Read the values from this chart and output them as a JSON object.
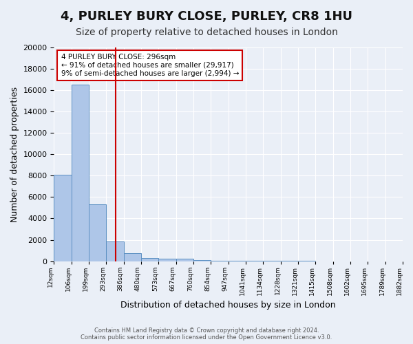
{
  "title1": "4, PURLEY BURY CLOSE, PURLEY, CR8 1HU",
  "title2": "Size of property relative to detached houses in London",
  "xlabel": "Distribution of detached houses by size in London",
  "ylabel": "Number of detached properties",
  "bin_labels": [
    "12sqm",
    "106sqm",
    "199sqm",
    "293sqm",
    "386sqm",
    "480sqm",
    "573sqm",
    "667sqm",
    "760sqm",
    "854sqm",
    "947sqm",
    "1041sqm",
    "1134sqm",
    "1228sqm",
    "1321sqm",
    "1415sqm",
    "1508sqm",
    "1602sqm",
    "1695sqm",
    "1789sqm",
    "1882sqm"
  ],
  "bar_heights": [
    8100,
    16500,
    5300,
    1850,
    750,
    320,
    230,
    200,
    130,
    50,
    50,
    40,
    30,
    20,
    10,
    5,
    5,
    3,
    2,
    1
  ],
  "bar_color": "#aec6e8",
  "bar_edge_color": "#5a8fc2",
  "red_line_x": 3.03,
  "annotation_line1": "4 PURLEY BURY CLOSE: 296sqm",
  "annotation_line2": "← 91% of detached houses are smaller (29,917)",
  "annotation_line3": "9% of semi-detached houses are larger (2,994) →",
  "annotation_box_color": "#ffffff",
  "annotation_box_edge": "#cc0000",
  "ylim": [
    0,
    20000
  ],
  "yticks": [
    0,
    2000,
    4000,
    6000,
    8000,
    10000,
    12000,
    14000,
    16000,
    18000,
    20000
  ],
  "bg_color": "#eaeff7",
  "plot_bg_color": "#eaeff7",
  "footer": "Contains HM Land Registry data © Crown copyright and database right 2024.\nContains public sector information licensed under the Open Government Licence v3.0.",
  "title1_fontsize": 13,
  "title2_fontsize": 10,
  "xlabel_fontsize": 9,
  "ylabel_fontsize": 9
}
